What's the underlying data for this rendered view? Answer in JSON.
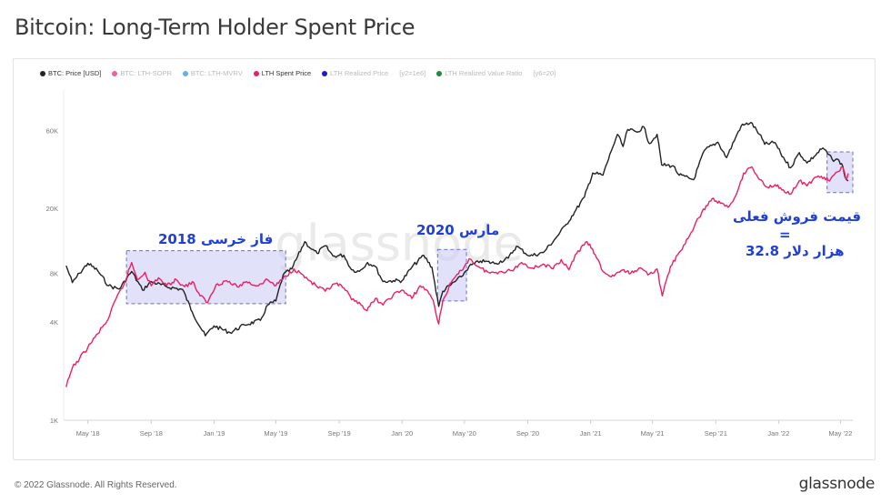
{
  "page": {
    "title": "Bitcoin: Long-Term Holder Spent Price",
    "footer": "© 2022 Glassnode. All Rights Reserved.",
    "brand": "glassnode",
    "watermark": "glassnode"
  },
  "legend": [
    {
      "label": "BTC: Price [USD]",
      "color": "#222222",
      "active": true
    },
    {
      "label": "BTC: LTH-SOPR",
      "color": "#f0609a",
      "active": false
    },
    {
      "label": "BTC: LTH-MVRV",
      "color": "#5fb0f0",
      "active": false
    },
    {
      "label": "LTH Spent Price",
      "color": "#ee1e64",
      "active": true
    },
    {
      "label": "LTH Realized Price",
      "color": "#1a1ad0",
      "active": false
    },
    {
      "label": "[y2=1e6]",
      "color": "",
      "active": false
    },
    {
      "label": "LTH Realized Value Ratio",
      "color": "#1e8a3c",
      "active": false
    },
    {
      "label": "[y6=20]",
      "color": "",
      "active": false
    }
  ],
  "annotations": {
    "bear_2018": "فاز خرسی 2018",
    "march_2020": "مارس 2020",
    "current_line1": "قیمت فروش فعلی",
    "current_line2": "=",
    "current_line3": "32.8 هزار دلار"
  },
  "colors": {
    "price": "#222222",
    "lth_spent": "#ee1e64",
    "highlight_fill": "#c9c9f5",
    "highlight_border": "#6a6ad8",
    "annotation": "#1f3fd8"
  },
  "chart_data": {
    "type": "line",
    "title": "Bitcoin: Long-Term Holder Spent Price",
    "y_scale": "log",
    "ylim": [
      1000,
      100000
    ],
    "y_ticks": [
      {
        "value": 1000,
        "label": "1K"
      },
      {
        "value": 4000,
        "label": "4K"
      },
      {
        "value": 8000,
        "label": "8K"
      },
      {
        "value": 20000,
        "label": "20K"
      },
      {
        "value": 60000,
        "label": "60K"
      }
    ],
    "xlim": [
      "2018-03-15",
      "2022-05-25"
    ],
    "x_ticks": [
      {
        "date": "2018-05-01",
        "label": "May '18"
      },
      {
        "date": "2018-09-01",
        "label": "Sep '18"
      },
      {
        "date": "2019-01-01",
        "label": "Jan '19"
      },
      {
        "date": "2019-05-01",
        "label": "May '19"
      },
      {
        "date": "2019-09-01",
        "label": "Sep '19"
      },
      {
        "date": "2020-01-01",
        "label": "Jan '20"
      },
      {
        "date": "2020-05-01",
        "label": "May '20"
      },
      {
        "date": "2020-09-01",
        "label": "Sep '20"
      },
      {
        "date": "2021-01-01",
        "label": "Jan '21"
      },
      {
        "date": "2021-05-01",
        "label": "May '21"
      },
      {
        "date": "2021-09-01",
        "label": "Sep '21"
      },
      {
        "date": "2022-01-01",
        "label": "Jan '22"
      },
      {
        "date": "2022-05-01",
        "label": "May '22"
      }
    ],
    "series": [
      {
        "name": "BTC: Price [USD]",
        "points": [
          [
            "2018-03-20",
            8900
          ],
          [
            "2018-04-01",
            7000
          ],
          [
            "2018-04-15",
            8000
          ],
          [
            "2018-05-01",
            9200
          ],
          [
            "2018-05-20",
            8300
          ],
          [
            "2018-06-10",
            6700
          ],
          [
            "2018-07-01",
            6400
          ],
          [
            "2018-07-25",
            8200
          ],
          [
            "2018-08-15",
            6300
          ],
          [
            "2018-09-01",
            7100
          ],
          [
            "2018-10-01",
            6600
          ],
          [
            "2018-11-01",
            6350
          ],
          [
            "2018-11-20",
            4600
          ],
          [
            "2018-12-15",
            3300
          ],
          [
            "2019-01-01",
            3800
          ],
          [
            "2019-02-01",
            3450
          ],
          [
            "2019-03-01",
            3850
          ],
          [
            "2019-04-01",
            4100
          ],
          [
            "2019-04-15",
            5100
          ],
          [
            "2019-05-01",
            5400
          ],
          [
            "2019-05-15",
            7800
          ],
          [
            "2019-06-01",
            8500
          ],
          [
            "2019-06-26",
            12500
          ],
          [
            "2019-07-10",
            11200
          ],
          [
            "2019-07-20",
            10600
          ],
          [
            "2019-08-05",
            11800
          ],
          [
            "2019-08-20",
            10200
          ],
          [
            "2019-09-10",
            10300
          ],
          [
            "2019-09-25",
            8400
          ],
          [
            "2019-10-10",
            8200
          ],
          [
            "2019-10-26",
            9300
          ],
          [
            "2019-11-10",
            8800
          ],
          [
            "2019-11-25",
            7100
          ],
          [
            "2019-12-15",
            7200
          ],
          [
            "2020-01-01",
            7200
          ],
          [
            "2020-01-20",
            8700
          ],
          [
            "2020-02-12",
            10300
          ],
          [
            "2020-02-28",
            8700
          ],
          [
            "2020-03-12",
            5000
          ],
          [
            "2020-03-20",
            6200
          ],
          [
            "2020-04-05",
            6800
          ],
          [
            "2020-04-25",
            7600
          ],
          [
            "2020-05-10",
            8800
          ],
          [
            "2020-06-01",
            9500
          ],
          [
            "2020-07-01",
            9200
          ],
          [
            "2020-07-25",
            9900
          ],
          [
            "2020-08-10",
            11700
          ],
          [
            "2020-09-05",
            10200
          ],
          [
            "2020-10-01",
            10700
          ],
          [
            "2020-10-25",
            13100
          ],
          [
            "2020-11-15",
            16000
          ],
          [
            "2020-12-01",
            19000
          ],
          [
            "2020-12-20",
            23500
          ],
          [
            "2021-01-05",
            33000
          ],
          [
            "2021-01-25",
            32000
          ],
          [
            "2021-02-10",
            45000
          ],
          [
            "2021-02-22",
            57000
          ],
          [
            "2021-03-05",
            48000
          ],
          [
            "2021-03-14",
            61000
          ],
          [
            "2021-04-01",
            58800
          ],
          [
            "2021-04-14",
            63500
          ],
          [
            "2021-04-25",
            50000
          ],
          [
            "2021-05-10",
            57000
          ],
          [
            "2021-05-19",
            37000
          ],
          [
            "2021-06-10",
            36500
          ],
          [
            "2021-06-22",
            32000
          ],
          [
            "2021-07-20",
            30000
          ],
          [
            "2021-08-10",
            45500
          ],
          [
            "2021-09-05",
            51000
          ],
          [
            "2021-09-22",
            41000
          ],
          [
            "2021-10-10",
            55000
          ],
          [
            "2021-10-20",
            64000
          ],
          [
            "2021-11-08",
            67500
          ],
          [
            "2021-11-25",
            57000
          ],
          [
            "2021-12-05",
            49500
          ],
          [
            "2021-12-25",
            50800
          ],
          [
            "2022-01-05",
            43500
          ],
          [
            "2022-01-24",
            35500
          ],
          [
            "2022-02-10",
            44000
          ],
          [
            "2022-02-25",
            38000
          ],
          [
            "2022-03-28",
            47000
          ],
          [
            "2022-04-15",
            40000
          ],
          [
            "2022-04-28",
            39500
          ],
          [
            "2022-05-06",
            36000
          ],
          [
            "2022-05-10",
            31000
          ],
          [
            "2022-05-16",
            29500
          ]
        ]
      },
      {
        "name": "LTH Spent Price",
        "points": [
          [
            "2018-03-20",
            1600
          ],
          [
            "2018-04-01",
            2100
          ],
          [
            "2018-04-15",
            2400
          ],
          [
            "2018-05-01",
            2800
          ],
          [
            "2018-05-20",
            3400
          ],
          [
            "2018-06-10",
            4200
          ],
          [
            "2018-06-25",
            5600
          ],
          [
            "2018-07-10",
            6800
          ],
          [
            "2018-07-25",
            9300
          ],
          [
            "2018-08-05",
            7300
          ],
          [
            "2018-08-20",
            8100
          ],
          [
            "2018-09-01",
            6700
          ],
          [
            "2018-09-15",
            7500
          ],
          [
            "2018-10-01",
            6700
          ],
          [
            "2018-10-20",
            7300
          ],
          [
            "2018-11-05",
            6600
          ],
          [
            "2018-11-20",
            7100
          ],
          [
            "2018-12-05",
            5800
          ],
          [
            "2018-12-20",
            5300
          ],
          [
            "2019-01-05",
            6800
          ],
          [
            "2019-01-25",
            7200
          ],
          [
            "2019-02-15",
            6600
          ],
          [
            "2019-03-05",
            7100
          ],
          [
            "2019-03-25",
            6700
          ],
          [
            "2019-04-15",
            7300
          ],
          [
            "2019-05-01",
            6700
          ],
          [
            "2019-05-20",
            7700
          ],
          [
            "2019-06-05",
            8500
          ],
          [
            "2019-06-20",
            7900
          ],
          [
            "2019-07-05",
            7200
          ],
          [
            "2019-07-20",
            6600
          ],
          [
            "2019-08-05",
            6200
          ],
          [
            "2019-08-25",
            6900
          ],
          [
            "2019-09-10",
            6500
          ],
          [
            "2019-09-25",
            5500
          ],
          [
            "2019-10-10",
            5300
          ],
          [
            "2019-10-25",
            4700
          ],
          [
            "2019-11-10",
            5600
          ],
          [
            "2019-11-25",
            5100
          ],
          [
            "2019-12-15",
            5900
          ],
          [
            "2020-01-01",
            6300
          ],
          [
            "2020-01-20",
            5600
          ],
          [
            "2020-02-05",
            6700
          ],
          [
            "2020-02-20",
            6200
          ],
          [
            "2020-03-01",
            5500
          ],
          [
            "2020-03-12",
            3900
          ],
          [
            "2020-03-20",
            5400
          ],
          [
            "2020-04-05",
            7000
          ],
          [
            "2020-04-25",
            8300
          ],
          [
            "2020-05-10",
            9800
          ],
          [
            "2020-06-01",
            8600
          ],
          [
            "2020-06-20",
            8000
          ],
          [
            "2020-07-10",
            8200
          ],
          [
            "2020-08-01",
            8300
          ],
          [
            "2020-08-20",
            9300
          ],
          [
            "2020-09-10",
            8600
          ],
          [
            "2020-10-01",
            9100
          ],
          [
            "2020-10-20",
            8500
          ],
          [
            "2020-11-05",
            9700
          ],
          [
            "2020-11-20",
            8400
          ],
          [
            "2020-12-05",
            10600
          ],
          [
            "2020-12-25",
            12500
          ],
          [
            "2021-01-10",
            10400
          ],
          [
            "2021-01-25",
            8200
          ],
          [
            "2021-02-10",
            7600
          ],
          [
            "2021-03-01",
            8300
          ],
          [
            "2021-03-20",
            8000
          ],
          [
            "2021-04-05",
            8600
          ],
          [
            "2021-04-25",
            7900
          ],
          [
            "2021-05-10",
            8500
          ],
          [
            "2021-05-20",
            5800
          ],
          [
            "2021-06-05",
            8800
          ],
          [
            "2021-06-25",
            11000
          ],
          [
            "2021-07-15",
            14200
          ],
          [
            "2021-08-05",
            19000
          ],
          [
            "2021-08-25",
            23000
          ],
          [
            "2021-09-10",
            21500
          ],
          [
            "2021-09-25",
            20300
          ],
          [
            "2021-10-10",
            24000
          ],
          [
            "2021-10-25",
            33000
          ],
          [
            "2021-11-10",
            36000
          ],
          [
            "2021-11-25",
            30000
          ],
          [
            "2021-12-10",
            27000
          ],
          [
            "2021-12-25",
            28000
          ],
          [
            "2022-01-10",
            26000
          ],
          [
            "2022-01-25",
            24500
          ],
          [
            "2022-02-10",
            29500
          ],
          [
            "2022-02-25",
            27500
          ],
          [
            "2022-03-10",
            30500
          ],
          [
            "2022-03-25",
            31500
          ],
          [
            "2022-04-10",
            29500
          ],
          [
            "2022-04-25",
            33500
          ],
          [
            "2022-05-05",
            36000
          ],
          [
            "2022-05-12",
            30000
          ],
          [
            "2022-05-16",
            32800
          ]
        ]
      }
    ],
    "highlight_regions": [
      {
        "name": "bear_2018",
        "x0": "2018-07-15",
        "x1": "2019-05-20",
        "y0": 5200,
        "y1": 11000
      },
      {
        "name": "march_2020",
        "x0": "2020-03-10",
        "x1": "2020-05-05",
        "y0": 5400,
        "y1": 11200
      },
      {
        "name": "current",
        "x0": "2022-04-05",
        "x1": "2022-05-25",
        "y0": 25000,
        "y1": 44500
      }
    ]
  }
}
